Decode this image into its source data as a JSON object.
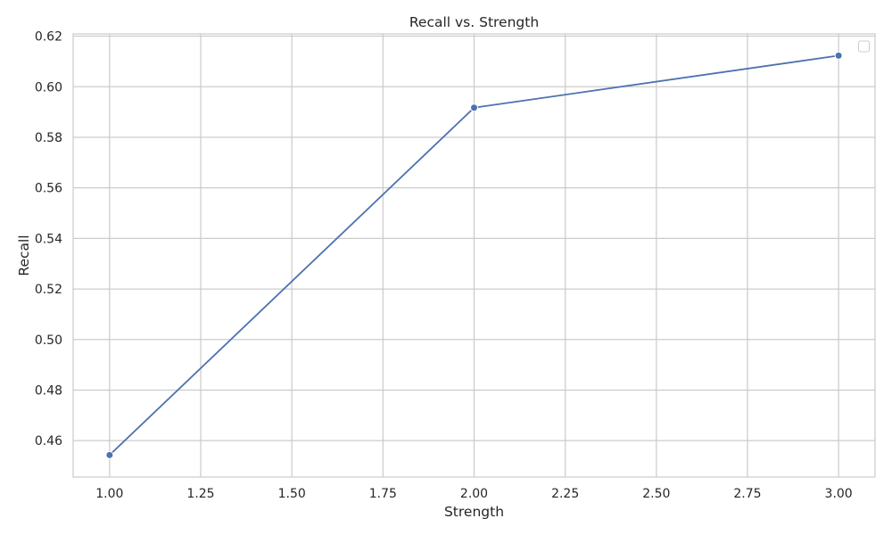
{
  "chart_data": {
    "type": "line",
    "title": "Recall vs. Strength",
    "xlabel": "Strength",
    "ylabel": "Recall",
    "x": [
      1.0,
      2.0,
      3.0
    ],
    "series": [
      {
        "values": [
          0.4543,
          0.5917,
          0.6123
        ],
        "color": "#4c72b0",
        "marker": "circle"
      }
    ],
    "xlim": [
      0.9,
      3.1
    ],
    "ylim": [
      0.4456,
      0.6209
    ],
    "xticks": [
      1.0,
      1.25,
      1.5,
      1.75,
      2.0,
      2.25,
      2.5,
      2.75,
      3.0
    ],
    "xtick_labels": [
      "1.00",
      "1.25",
      "1.50",
      "1.75",
      "2.00",
      "2.25",
      "2.50",
      "2.75",
      "3.00"
    ],
    "yticks": [
      0.46,
      0.48,
      0.5,
      0.52,
      0.54,
      0.56,
      0.58,
      0.6,
      0.62
    ],
    "ytick_labels": [
      "0.46",
      "0.48",
      "0.50",
      "0.52",
      "0.54",
      "0.56",
      "0.58",
      "0.60",
      "0.62"
    ],
    "grid": true,
    "legend": {
      "placement": "upper right",
      "entries": []
    },
    "colors": {
      "grid": "#cccccc",
      "spine": "#cccccc",
      "background": "#ffffff",
      "text": "#262626"
    }
  }
}
